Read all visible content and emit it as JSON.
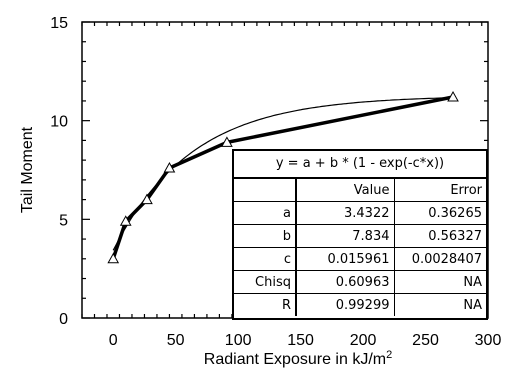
{
  "chart_data": {
    "type": "scatter",
    "xlabel": "Radiant Exposure in kJ/m",
    "xlabel_superscript": "2",
    "ylabel": "Tail Moment",
    "xlim": [
      -25,
      300
    ],
    "ylim": [
      0,
      15
    ],
    "x_ticks": [
      0,
      50,
      100,
      150,
      200,
      250,
      300
    ],
    "y_ticks": [
      0,
      5,
      10,
      15
    ],
    "grid": false,
    "marker": "open-triangle",
    "series": [
      {
        "x": [
          0,
          10,
          27,
          45,
          91,
          272
        ],
        "y": [
          3.0,
          4.9,
          6.0,
          7.6,
          8.9,
          11.2
        ]
      }
    ],
    "fit": {
      "equation": "y = a + b * (1 - exp(-c*x))",
      "headers": [
        "",
        "Value",
        "Error"
      ],
      "rows": [
        [
          "a",
          "3.4322",
          "0.36265"
        ],
        [
          "b",
          "7.834",
          "0.56327"
        ],
        [
          "c",
          "0.015961",
          "0.0028407"
        ],
        [
          "Chisq",
          "0.60963",
          "NA"
        ],
        [
          "R",
          "0.99299",
          "NA"
        ]
      ],
      "a": 3.4322,
      "b": 7.834,
      "c": 0.015961
    }
  }
}
